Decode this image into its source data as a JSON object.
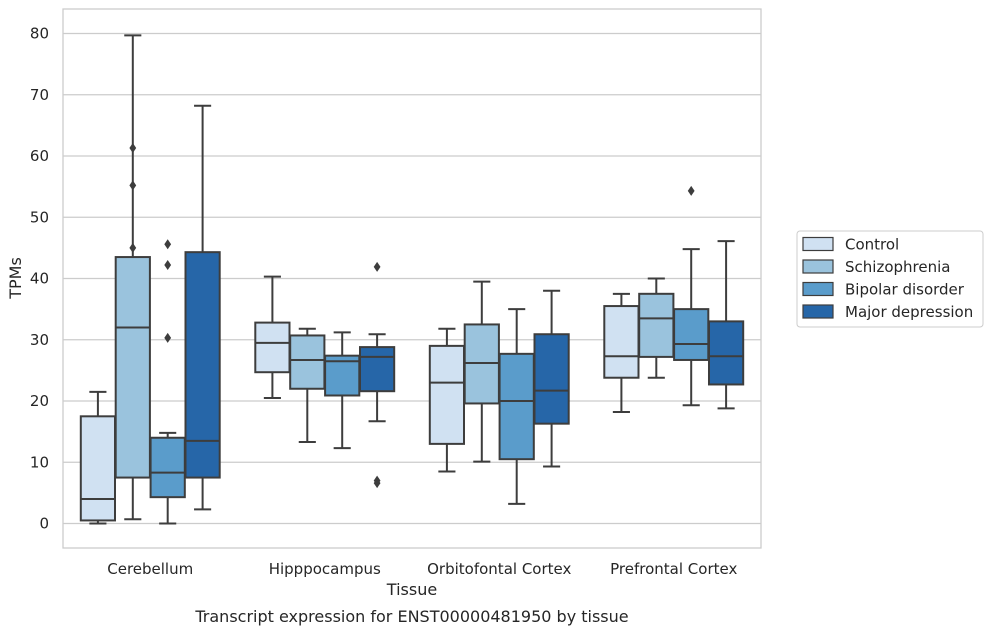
{
  "chart_data": {
    "type": "box",
    "caption": "Transcript expression for ENST00000481950 by tissue",
    "xlabel": "Tissue",
    "ylabel": "TPMs",
    "ylim": [
      -4,
      84
    ],
    "yticks": [
      0,
      10,
      20,
      30,
      40,
      50,
      60,
      70,
      80
    ],
    "grid": true,
    "legend_position": "right",
    "categories": [
      "Cerebellum",
      "Hipppocampus",
      "Orbitofontal Cortex",
      "Prefrontal Cortex"
    ],
    "series": [
      {
        "name": "Control",
        "color": "#d0e1f2",
        "boxes": [
          {
            "whisker_low": 0,
            "q1": 0.5,
            "median": 4,
            "q3": 17.5,
            "whisker_high": 21.5,
            "outliers": []
          },
          {
            "whisker_low": 20.5,
            "q1": 24.7,
            "median": 29.5,
            "q3": 32.8,
            "whisker_high": 40.3,
            "outliers": []
          },
          {
            "whisker_low": 8.5,
            "q1": 13,
            "median": 23,
            "q3": 29,
            "whisker_high": 31.8,
            "outliers": []
          },
          {
            "whisker_low": 18.2,
            "q1": 23.8,
            "median": 27.3,
            "q3": 35.5,
            "whisker_high": 37.5,
            "outliers": []
          }
        ]
      },
      {
        "name": "Schizophrenia",
        "color": "#9ac3dd",
        "boxes": [
          {
            "whisker_low": 0.7,
            "q1": 7.5,
            "median": 32,
            "q3": 43.5,
            "whisker_high": 79.7,
            "outliers": [
              45,
              55.2,
              61.3
            ]
          },
          {
            "whisker_low": 13.3,
            "q1": 22,
            "median": 26.7,
            "q3": 30.7,
            "whisker_high": 31.8,
            "outliers": []
          },
          {
            "whisker_low": 10.1,
            "q1": 19.6,
            "median": 26.2,
            "q3": 32.5,
            "whisker_high": 39.5,
            "outliers": []
          },
          {
            "whisker_low": 23.8,
            "q1": 27.2,
            "median": 33.5,
            "q3": 37.5,
            "whisker_high": 40,
            "outliers": []
          }
        ]
      },
      {
        "name": "Bipolar disorder",
        "color": "#5a9ccb",
        "boxes": [
          {
            "whisker_low": 0,
            "q1": 4.3,
            "median": 8.3,
            "q3": 14,
            "whisker_high": 14.8,
            "outliers": [
              30.3,
              42.2,
              45.6
            ]
          },
          {
            "whisker_low": 12.3,
            "q1": 20.9,
            "median": 26.5,
            "q3": 27.4,
            "whisker_high": 31.2,
            "outliers": []
          },
          {
            "whisker_low": 3.2,
            "q1": 10.5,
            "median": 20,
            "q3": 27.7,
            "whisker_high": 35,
            "outliers": []
          },
          {
            "whisker_low": 19.3,
            "q1": 26.7,
            "median": 29.3,
            "q3": 35,
            "whisker_high": 44.8,
            "outliers": [
              54.3
            ]
          }
        ]
      },
      {
        "name": "Major depression",
        "color": "#2666a8",
        "boxes": [
          {
            "whisker_low": 2.3,
            "q1": 7.5,
            "median": 13.5,
            "q3": 44.3,
            "whisker_high": 68.2,
            "outliers": []
          },
          {
            "whisker_low": 16.7,
            "q1": 21.6,
            "median": 27.2,
            "q3": 28.8,
            "whisker_high": 30.9,
            "outliers": [
              6.6,
              7,
              41.9
            ]
          },
          {
            "whisker_low": 9.3,
            "q1": 16.3,
            "median": 21.7,
            "q3": 30.9,
            "whisker_high": 38,
            "outliers": []
          },
          {
            "whisker_low": 18.8,
            "q1": 22.7,
            "median": 27.3,
            "q3": 33,
            "whisker_high": 46.1,
            "outliers": []
          }
        ]
      }
    ]
  }
}
